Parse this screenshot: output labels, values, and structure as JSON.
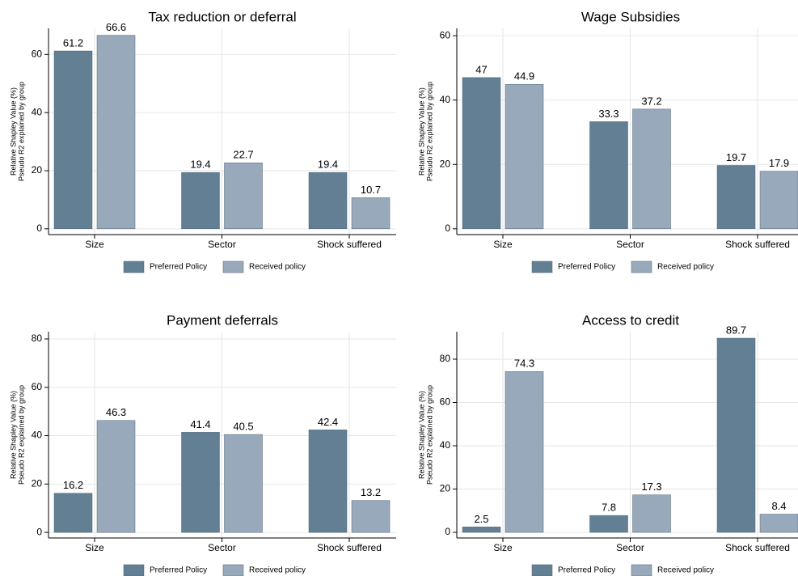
{
  "chart_data": [
    {
      "type": "bar",
      "title": "Tax reduction or deferral",
      "ylabel": [
        "Relative Shapley Value (%)",
        "Pseudo R2 explained by group"
      ],
      "categories": [
        "Size",
        "Sector",
        "Shock suffered"
      ],
      "series": [
        {
          "name": "Preferred Policy",
          "color": "#627f93",
          "values": [
            61.2,
            19.4,
            19.4
          ]
        },
        {
          "name": "Received policy",
          "color": "#97a9ba",
          "values": [
            66.6,
            22.7,
            10.7
          ]
        }
      ],
      "ylim": [
        -2,
        69
      ],
      "yticks": [
        0,
        20,
        40,
        60
      ],
      "grid": true
    },
    {
      "type": "bar",
      "title": "Wage Subsidies",
      "ylabel": [
        "Relative Shapley Value (%)",
        "Pseudo R2 explained by group"
      ],
      "categories": [
        "Size",
        "Sector",
        "Shock suffered"
      ],
      "series": [
        {
          "name": "Preferred Policy",
          "color": "#627f93",
          "values": [
            47,
            33.3,
            19.7
          ]
        },
        {
          "name": "Received policy",
          "color": "#97a9ba",
          "values": [
            44.9,
            37.2,
            17.9
          ]
        }
      ],
      "ylim": [
        -1.8,
        62.3
      ],
      "yticks": [
        0,
        20,
        40,
        60
      ],
      "grid": true
    },
    {
      "type": "bar",
      "title": "Payment deferrals",
      "ylabel": [
        "Relative Shapley Value (%)",
        "Pseudo R2 explained by group"
      ],
      "categories": [
        "Size",
        "Sector",
        "Shock suffered"
      ],
      "series": [
        {
          "name": "Preferred Policy",
          "color": "#627f93",
          "values": [
            16.2,
            41.4,
            42.4
          ]
        },
        {
          "name": "Received policy",
          "color": "#97a9ba",
          "values": [
            46.3,
            40.5,
            13.2
          ]
        }
      ],
      "ylim": [
        -2.3,
        83
      ],
      "yticks": [
        0,
        20,
        40,
        60,
        80
      ],
      "grid": true
    },
    {
      "type": "bar",
      "title": "Access to credit",
      "ylabel": [
        "Relative Shapley Value (%)",
        "Pseudo R2 explained by group"
      ],
      "categories": [
        "Size",
        "Sector",
        "Shock suffered"
      ],
      "series": [
        {
          "name": "Preferred Policy",
          "color": "#627f93",
          "values": [
            2.5,
            7.8,
            89.7
          ]
        },
        {
          "name": "Received policy",
          "color": "#97a9ba",
          "values": [
            74.3,
            17.3,
            8.4
          ]
        }
      ],
      "ylim": [
        -2.6,
        92.7
      ],
      "yticks": [
        0,
        20,
        40,
        60,
        80
      ],
      "grid": true
    }
  ]
}
